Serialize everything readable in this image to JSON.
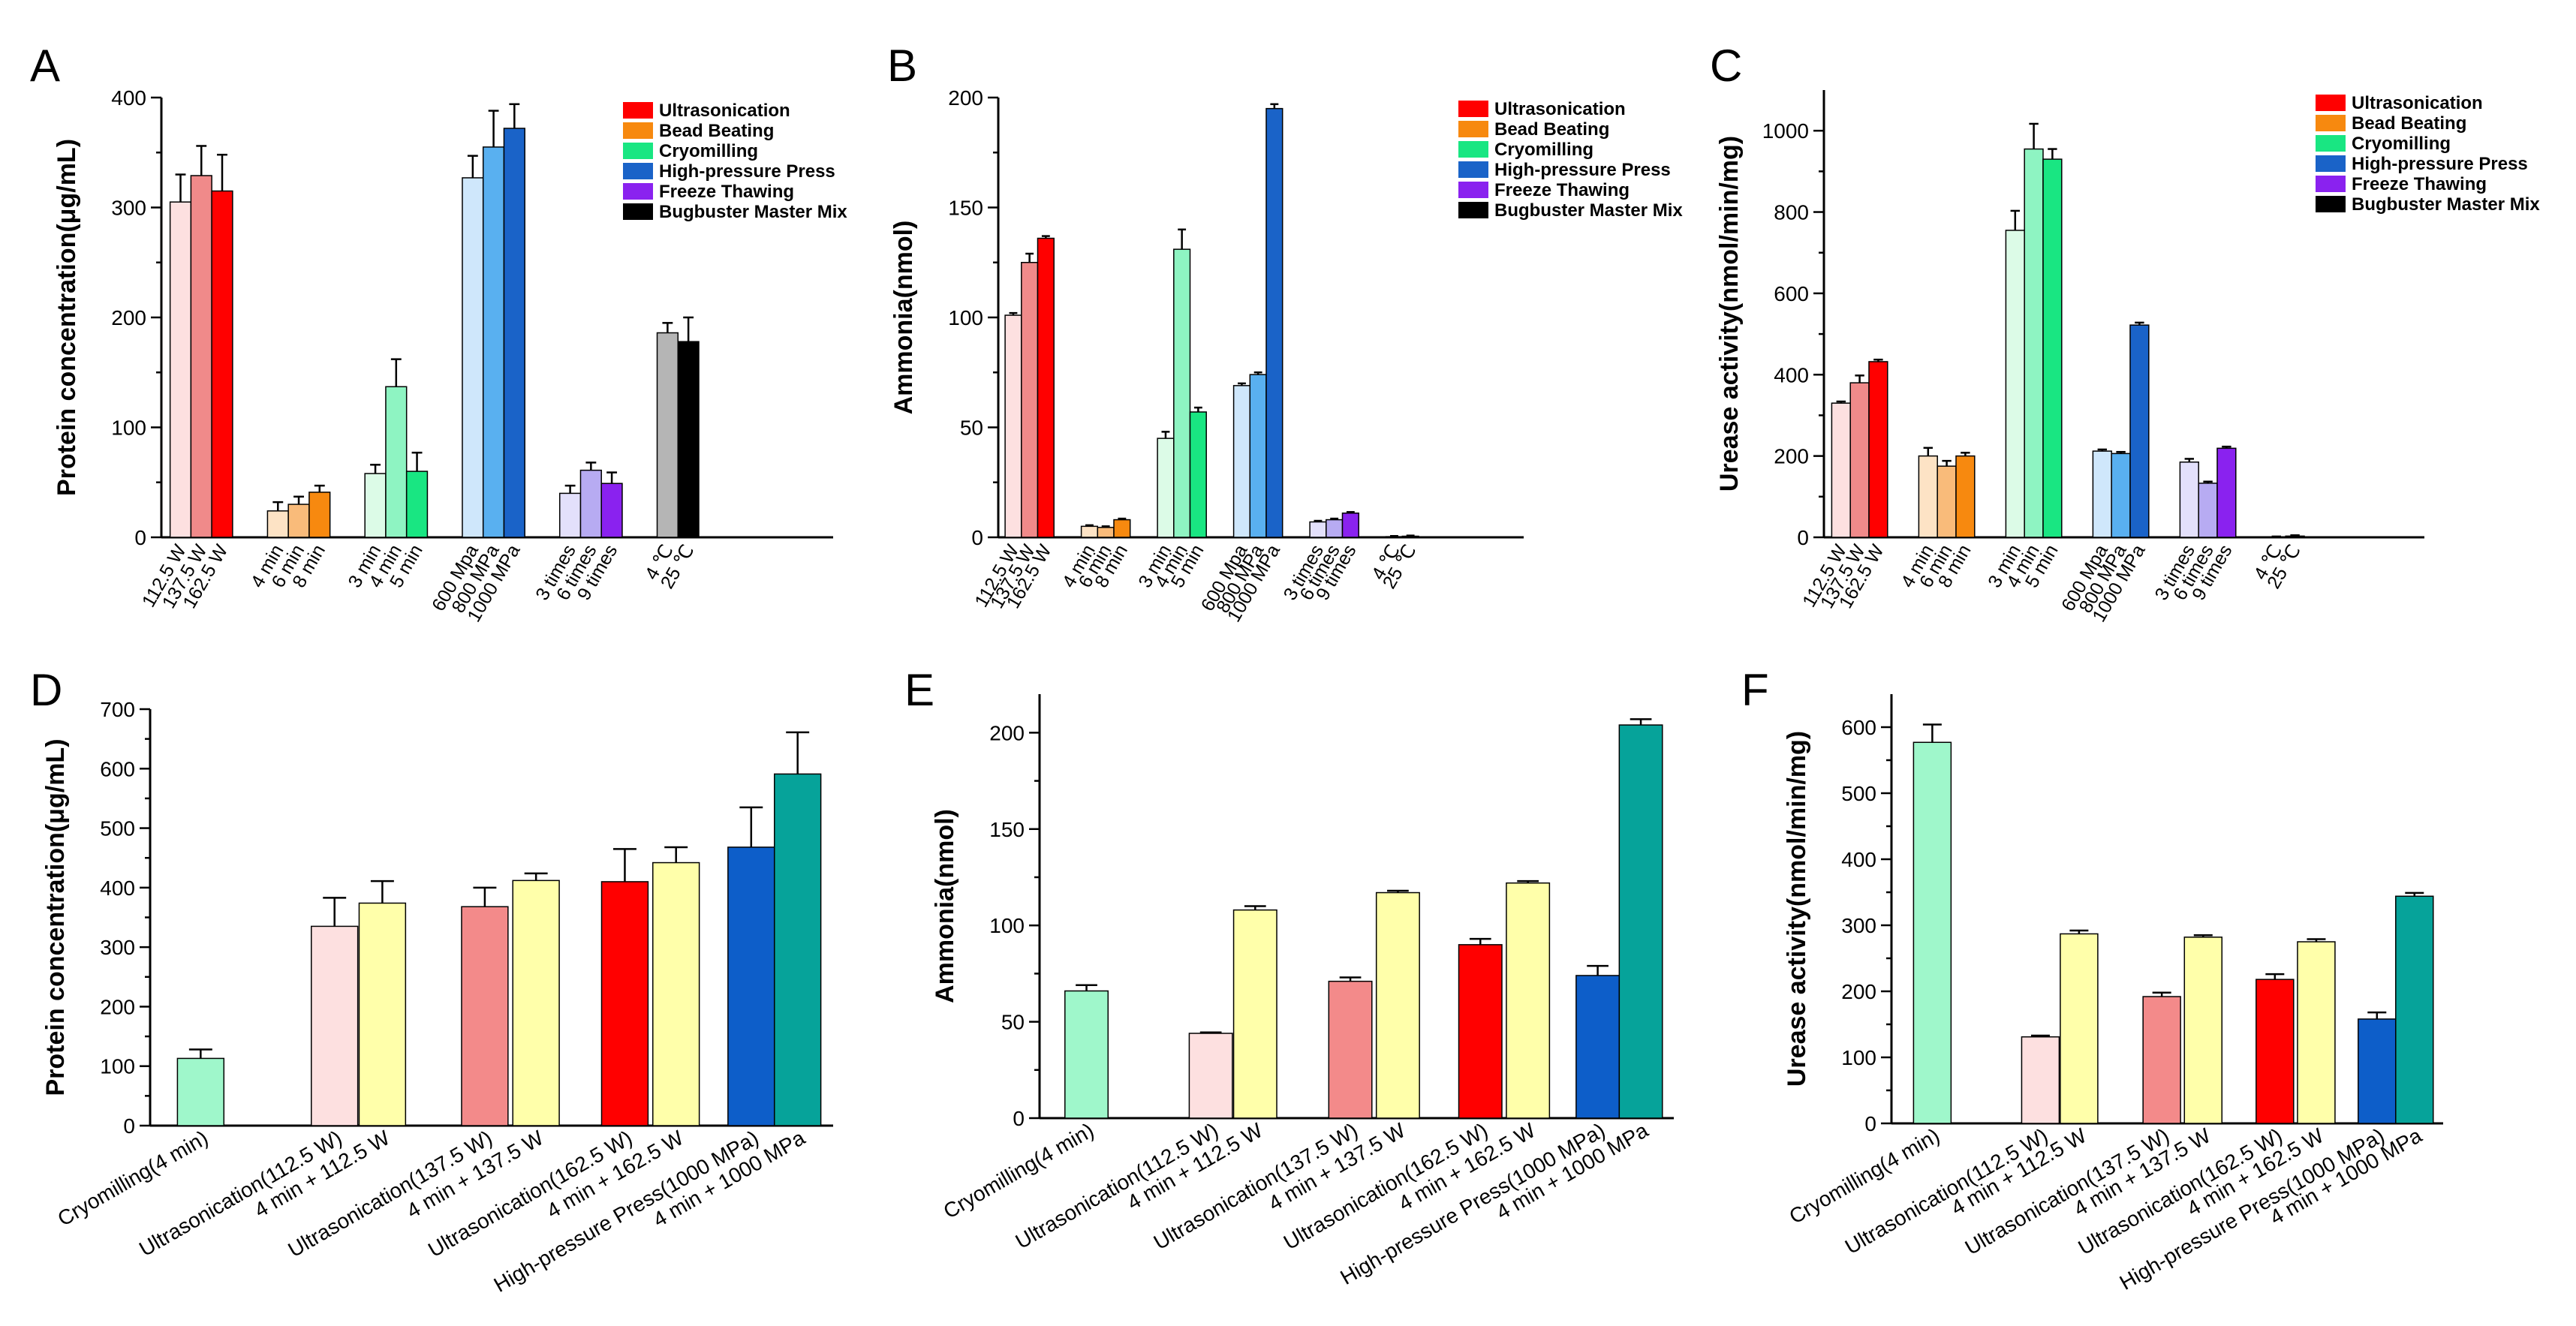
{
  "colors": {
    "ultra": [
      "#fde0e0",
      "#f08a8a",
      "#ff0000"
    ],
    "bead": [
      "#fde3c5",
      "#f9bb7a",
      "#f7890f"
    ],
    "cryo": [
      "#dcfbe7",
      "#8ef4c2",
      "#19e682"
    ],
    "hpp": [
      "#cfe7fb",
      "#59b0f0",
      "#1a63c8"
    ],
    "ft": [
      "#e3e0fb",
      "#b7abf2",
      "#8a22ef"
    ],
    "bug": [
      "#b5b5b5",
      "#000000"
    ],
    "panelB": {
      "cryo": "#9ff7cb",
      "ultra1": "#fde0e0",
      "ultra2": "#f38a8a",
      "ultra3": "#ff0000",
      "combo": "#ffffaa",
      "hpp": "#0d5ec9",
      "combo_hpp": "#06a39a"
    }
  },
  "legend": [
    "Ultrasonication",
    "Bead Beating",
    "Cryomilling",
    "High-pressure Press",
    "Freeze Thawing",
    "Bugbuster Master Mix"
  ],
  "chart_data": [
    {
      "panel": "A",
      "type": "bar",
      "ylabel": "Protein concentration(μg/mL)",
      "ylim": [
        0,
        400
      ],
      "yticks": [
        0,
        100,
        200,
        300,
        400
      ],
      "legend_position": "top-right",
      "groups": [
        {
          "method": "Ultrasonication",
          "categories": [
            "112.5 W",
            "137.5 W",
            "162.5 W"
          ],
          "values": [
            305,
            329,
            315
          ],
          "errors": [
            25,
            27,
            33
          ]
        },
        {
          "method": "Bead Beating",
          "categories": [
            "4 min",
            "6 min",
            "8 min"
          ],
          "values": [
            24,
            30,
            41
          ],
          "errors": [
            8,
            7,
            6
          ]
        },
        {
          "method": "Cryomilling",
          "categories": [
            "3 min",
            "4 min",
            "5 min"
          ],
          "values": [
            58,
            137,
            60
          ],
          "errors": [
            8,
            25,
            17
          ]
        },
        {
          "method": "High-pressure Press",
          "categories": [
            "600 Mpa",
            "800 MPa",
            "1000 MPa"
          ],
          "values": [
            327,
            355,
            372
          ],
          "errors": [
            20,
            33,
            22
          ]
        },
        {
          "method": "Freeze Thawing",
          "categories": [
            "3 times",
            "6 times",
            "9 times"
          ],
          "values": [
            40,
            61,
            49
          ],
          "errors": [
            7,
            7,
            10
          ]
        },
        {
          "method": "Bugbuster Master Mix",
          "categories": [
            "4 ℃",
            "25 ℃"
          ],
          "values": [
            186,
            178
          ],
          "errors": [
            9,
            22
          ]
        }
      ]
    },
    {
      "panel": "B",
      "type": "bar",
      "ylabel": "Ammonia(nmol)",
      "ylim": [
        0,
        200
      ],
      "yticks": [
        0,
        50,
        100,
        150,
        200
      ],
      "legend_position": "top-right",
      "groups": [
        {
          "method": "Ultrasonication",
          "categories": [
            "112.5 W",
            "137.5 W",
            "162.5 W"
          ],
          "values": [
            101,
            125,
            136
          ],
          "errors": [
            1,
            4,
            1
          ]
        },
        {
          "method": "Bead Beating",
          "categories": [
            "4 min",
            "6 min",
            "8 min"
          ],
          "values": [
            5,
            4.5,
            8
          ],
          "errors": [
            0.5,
            0.5,
            0.5
          ]
        },
        {
          "method": "Cryomilling",
          "categories": [
            "3 min",
            "4 min",
            "5 min"
          ],
          "values": [
            45,
            131,
            57
          ],
          "errors": [
            3,
            9,
            2
          ]
        },
        {
          "method": "High-pressure Press",
          "categories": [
            "600 Mpa",
            "800 MPa",
            "1000 MPa"
          ],
          "values": [
            69,
            74,
            195
          ],
          "errors": [
            1,
            1,
            2
          ]
        },
        {
          "method": "Freeze Thawing",
          "categories": [
            "3 times",
            "6 times",
            "9 times"
          ],
          "values": [
            7,
            8,
            11
          ],
          "errors": [
            0.5,
            0.5,
            0.5
          ]
        },
        {
          "method": "Bugbuster Master Mix",
          "categories": [
            "4 ℃",
            "25 ℃"
          ],
          "values": [
            0.3,
            0.5
          ],
          "errors": [
            0.3,
            0.3
          ]
        }
      ]
    },
    {
      "panel": "C",
      "type": "bar",
      "ylabel": "Urease activity(nmol/min/mg)",
      "ylim": [
        0,
        1100
      ],
      "yticks": [
        0,
        200,
        400,
        600,
        800,
        1000
      ],
      "legend_position": "top-right",
      "groups": [
        {
          "method": "Ultrasonication",
          "categories": [
            "112.5 W",
            "137.5 W",
            "162.5 W"
          ],
          "values": [
            330,
            380,
            432
          ],
          "errors": [
            4,
            18,
            5
          ]
        },
        {
          "method": "Bead Beating",
          "categories": [
            "4 min",
            "6 min",
            "8 min"
          ],
          "values": [
            200,
            175,
            200
          ],
          "errors": [
            20,
            13,
            8
          ]
        },
        {
          "method": "Cryomilling",
          "categories": [
            "3 min",
            "4 min",
            "5 min"
          ],
          "values": [
            755,
            955,
            930
          ],
          "errors": [
            48,
            62,
            25
          ]
        },
        {
          "method": "High-pressure Press",
          "categories": [
            "600 Mpa",
            "800 MPa",
            "1000 MPa"
          ],
          "values": [
            212,
            206,
            522
          ],
          "errors": [
            4,
            4,
            6
          ]
        },
        {
          "method": "Freeze Thawing",
          "categories": [
            "3 times",
            "6 times",
            "9 times"
          ],
          "values": [
            185,
            133,
            219
          ],
          "errors": [
            8,
            4,
            4
          ]
        },
        {
          "method": "Bugbuster Master Mix",
          "categories": [
            "4 ℃",
            "25 ℃"
          ],
          "values": [
            1,
            3
          ],
          "errors": [
            1,
            2
          ]
        }
      ]
    },
    {
      "panel": "D",
      "type": "bar",
      "ylabel": "Protein concentration(μg/mL)",
      "ylim": [
        0,
        700
      ],
      "yticks": [
        0,
        100,
        200,
        300,
        400,
        500,
        600,
        700
      ],
      "categories": [
        "Cryomilling(4 min)",
        "Ultrasonication(112.5 W)",
        "4 min + 112.5 W",
        "Ultrasonication(137.5 W)",
        "4 min + 137.5 W",
        "Ultrasonication(162.5 W)",
        "4 min + 162.5 W",
        "High-pressure Press(1000 MPa)",
        "4 min + 1000 MPa"
      ],
      "values": [
        113,
        335,
        374,
        368,
        412,
        410,
        442,
        468,
        591
      ],
      "errors": [
        15,
        48,
        37,
        32,
        12,
        55,
        26,
        67,
        70
      ]
    },
    {
      "panel": "E",
      "type": "bar",
      "ylabel": "Ammonia(nmol)",
      "ylim": [
        0,
        220
      ],
      "yticks": [
        0,
        50,
        100,
        150,
        200
      ],
      "categories": [
        "Cryomilling(4 min)",
        "Ultrasonication(112.5 W)",
        "4 min + 112.5 W",
        "Ultrasonication(137.5 W)",
        "4 min + 137.5 W",
        "Ultrasonication(162.5 W)",
        "4 min + 162.5 W",
        "High-pressure Press(1000 MPa)",
        "4 min + 1000 MPa"
      ],
      "values": [
        66,
        44,
        108,
        71,
        117,
        90,
        122,
        74,
        204
      ],
      "errors": [
        3,
        0.5,
        2,
        2,
        1,
        3,
        1,
        5,
        3
      ]
    },
    {
      "panel": "F",
      "type": "bar",
      "ylabel": "Urease activity(nmol/min/mg)",
      "ylim": [
        0,
        650
      ],
      "yticks": [
        0,
        100,
        200,
        300,
        400,
        500,
        600
      ],
      "categories": [
        "Cryomilling(4 min)",
        "Ultrasonication(112.5 W)",
        "4 min + 112.5 W",
        "Ultrasonication(137.5 W)",
        "4 min + 137.5 W",
        "Ultrasonication(162.5 W)",
        "4 min + 162.5 W",
        "High-pressure Press(1000 MPa)",
        "4 min + 1000 MPa"
      ],
      "values": [
        577,
        131,
        287,
        192,
        282,
        218,
        275,
        158,
        344
      ],
      "errors": [
        27,
        2,
        5,
        6,
        3,
        8,
        4,
        10,
        5
      ]
    }
  ]
}
